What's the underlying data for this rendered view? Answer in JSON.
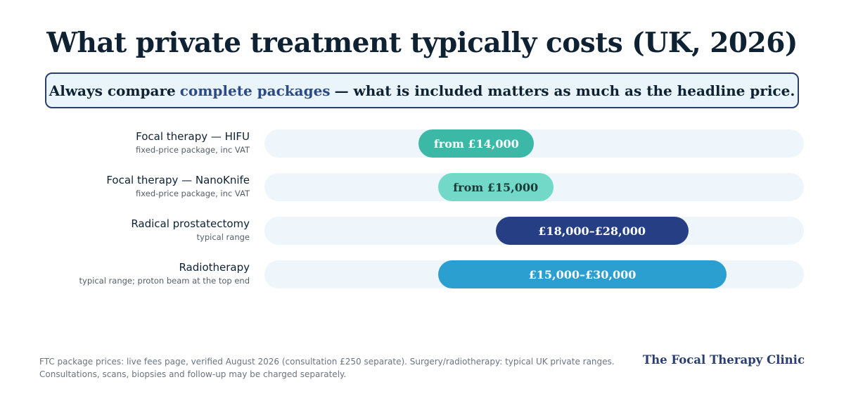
{
  "chart_data": {
    "type": "bar",
    "title": "What private treatment typically costs (UK, 2026)",
    "callout": {
      "before": "Always compare",
      "highlight": "complete packages",
      "after": "— what is included matters as much as the headline price."
    },
    "x_range_gbp": [
      6000,
      34000
    ],
    "unit": "GBP",
    "series": [
      {
        "name": "Focal therapy — HIFU",
        "note": "fixed-price package, inc VAT",
        "range_gbp": [
          14000,
          20000
        ],
        "label": "from £14,000",
        "color": "#3cb8a7",
        "text_color": "#ffffff"
      },
      {
        "name": "Focal therapy — NanoKnife",
        "note": "fixed-price package, inc VAT",
        "range_gbp": [
          15000,
          21000
        ],
        "label": "from £15,000",
        "color": "#72d9c8",
        "text_color": "#1b3c3a"
      },
      {
        "name": "Radical prostatectomy",
        "note": "typical range",
        "range_gbp": [
          18000,
          28000
        ],
        "label": "£18,000–£28,000",
        "color": "#263f84",
        "text_color": "#ffffff"
      },
      {
        "name": "Radiotherapy",
        "note": "typical range; proton beam at the top end",
        "range_gbp": [
          15000,
          30000
        ],
        "label": "£15,000–£30,000",
        "color": "#2b9fcf",
        "text_color": "#ffffff"
      }
    ],
    "footnote": [
      "FTC package prices: live fees page, verified August 2026 (consultation £250 separate). Surgery/radiotherapy: typical UK private ranges.",
      "Consultations, scans, biopsies and follow-up may be charged separately."
    ],
    "brand": "The Focal Therapy Clinic"
  }
}
